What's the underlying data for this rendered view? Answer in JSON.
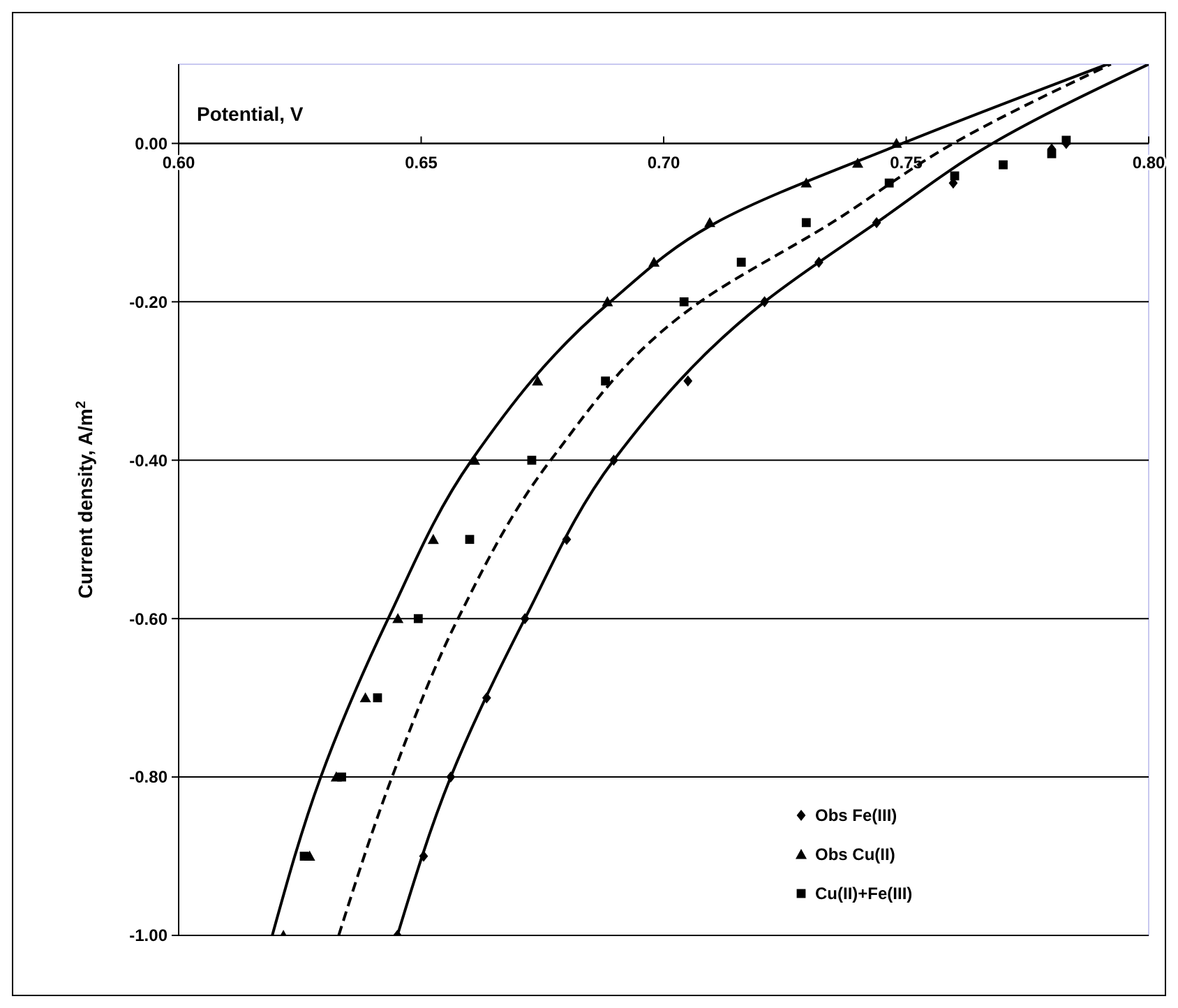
{
  "chart_data": {
    "type": "scatter",
    "xlabel": "Potential, V",
    "ylabel": "Current density, A/m$^{2}$",
    "xlim": [
      0.6,
      0.8
    ],
    "ylim": [
      -1.0,
      0.1
    ],
    "xticks": [
      {
        "value": 0.6,
        "label": "0.60"
      },
      {
        "value": 0.65,
        "label": "0.65"
      },
      {
        "value": 0.7,
        "label": "0.70"
      },
      {
        "value": 0.75,
        "label": "0.75"
      },
      {
        "value": 0.8,
        "label": "0.80"
      }
    ],
    "yticks": [
      {
        "value": -1.0,
        "label": "-1.00"
      },
      {
        "value": -0.8,
        "label": "-0.80"
      },
      {
        "value": -0.6,
        "label": "-0.60"
      },
      {
        "value": -0.4,
        "label": "-0.40"
      },
      {
        "value": -0.2,
        "label": "-0.20"
      },
      {
        "value": 0,
        "label": "0.00"
      }
    ],
    "grid": "y",
    "legend": "bottom right",
    "series": [
      {
        "name": "Obs Fe(III)",
        "marker": "diamond",
        "color": "#000000",
        "x": [
          0.6451,
          0.6505,
          0.6561,
          0.6635,
          0.6714,
          0.68,
          0.6897,
          0.705,
          0.7208,
          0.732,
          0.7439,
          0.7597,
          0.78,
          0.783
        ],
        "values": [
          -1.0,
          -0.9,
          -0.8,
          -0.7,
          -0.6,
          -0.5,
          -0.4,
          -0.3,
          -0.2,
          -0.15,
          -0.1,
          -0.05,
          -0.007,
          0.0
        ]
      },
      {
        "name": "Obs Cu(II)",
        "marker": "triangle",
        "color": "#000000",
        "x": [
          0.6216,
          0.627,
          0.6325,
          0.6385,
          0.6452,
          0.6525,
          0.661,
          0.674,
          0.6884,
          0.698,
          0.7095,
          0.7294,
          0.74,
          0.748
        ],
        "values": [
          -1.0,
          -0.9,
          -0.8,
          -0.7,
          -0.6,
          -0.5,
          -0.4,
          -0.3,
          -0.2,
          -0.15,
          -0.1,
          -0.05,
          -0.025,
          0.0
        ]
      },
      {
        "name": "Cu(II)+Fe(III)",
        "marker": "square",
        "color": "#000000",
        "x": [
          0.6259,
          0.6336,
          0.641,
          0.6494,
          0.66,
          0.6728,
          0.688,
          0.7042,
          0.716,
          0.7294,
          0.7465,
          0.76,
          0.77,
          0.78,
          0.783
        ],
        "values": [
          -0.9,
          -0.8,
          -0.7,
          -0.6,
          -0.5,
          -0.4,
          -0.3,
          -0.2,
          -0.15,
          -0.1,
          -0.05,
          -0.041,
          -0.027,
          -0.013,
          0.004
        ]
      },
      {
        "type": "line",
        "line_style": "solid",
        "color": "#000000",
        "x": [
          0.6193,
          0.6293,
          0.6432,
          0.6604,
          0.689,
          0.7108,
          0.7492,
          0.7915
        ],
        "values": [
          -1.0,
          -0.8,
          -0.6,
          -0.4,
          -0.2,
          -0.1,
          0.0,
          0.1
        ]
      },
      {
        "type": "line",
        "line_style": "dashed",
        "color": "#000000",
        "x": [
          0.633,
          0.644,
          0.6576,
          0.6767,
          0.7075,
          0.7347,
          0.7597,
          0.7922
        ],
        "values": [
          -1.0,
          -0.8,
          -0.6,
          -0.4,
          -0.2,
          -0.1,
          0.0,
          0.1
        ]
      },
      {
        "type": "line",
        "line_style": "solid",
        "color": "#000000",
        "x": [
          0.6451,
          0.6561,
          0.6714,
          0.6897,
          0.7208,
          0.7439,
          0.7678,
          0.8
        ],
        "values": [
          -1.0,
          -0.8,
          -0.6,
          -0.4,
          -0.2,
          -0.1,
          0.0,
          0.1
        ]
      }
    ]
  }
}
